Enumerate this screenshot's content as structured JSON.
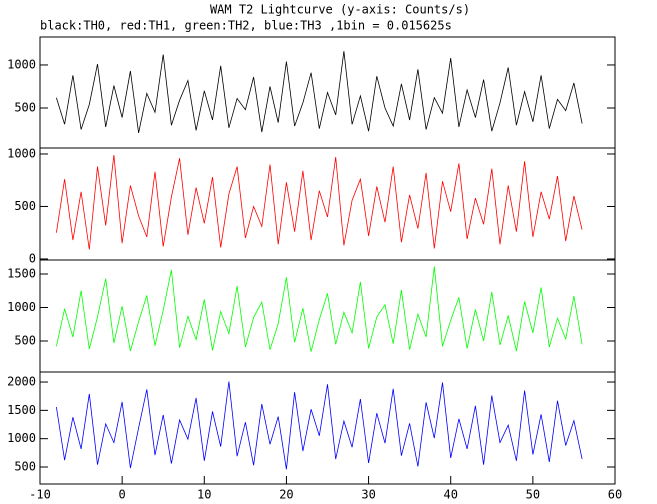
{
  "title": "WAM T2 Lightcurve (y-axis: Counts/s)",
  "subtitle": "black:TH0, red:TH1, green:TH2, blue:TH3 ,1bin = 0.015625s",
  "chart_data": [
    {
      "type": "line",
      "color": "#000000",
      "x": [
        -8,
        -7,
        -6,
        -5,
        -4,
        -3,
        -2,
        -1,
        0,
        1,
        2,
        3,
        4,
        5,
        6,
        7,
        8,
        9,
        10,
        11,
        12,
        13,
        14,
        15,
        16,
        17,
        18,
        19,
        20,
        21,
        22,
        23,
        24,
        25,
        26,
        27,
        28,
        29,
        30,
        31,
        32,
        33,
        34,
        35,
        36,
        37,
        38,
        39,
        40,
        41,
        42,
        43,
        44,
        45,
        46,
        47,
        48,
        49,
        50,
        51,
        52,
        53,
        54,
        55,
        56
      ],
      "values": [
        620,
        310,
        880,
        250,
        540,
        1010,
        280,
        760,
        390,
        930,
        210,
        670,
        450,
        1120,
        300,
        590,
        820,
        240,
        700,
        360,
        990,
        270,
        610,
        480,
        860,
        220,
        750,
        330,
        1040,
        290,
        560,
        910,
        260,
        680,
        420,
        1160,
        310,
        640,
        230,
        870,
        500,
        290,
        780,
        360,
        950,
        250,
        620,
        440,
        1080,
        280,
        710,
        390,
        830,
        230,
        560,
        970,
        300,
        690,
        340,
        880,
        260,
        600,
        470,
        790,
        320
      ],
      "xlim": [
        -10,
        60
      ],
      "ylim": [
        35,
        1325
      ],
      "yticks": [
        500,
        1000
      ]
    },
    {
      "type": "line",
      "color": "#ff0000",
      "x": [
        -8,
        -7,
        -6,
        -5,
        -4,
        -3,
        -2,
        -1,
        0,
        1,
        2,
        3,
        4,
        5,
        6,
        7,
        8,
        9,
        10,
        11,
        12,
        13,
        14,
        15,
        16,
        17,
        18,
        19,
        20,
        21,
        22,
        23,
        24,
        25,
        26,
        27,
        28,
        29,
        30,
        31,
        32,
        33,
        34,
        35,
        36,
        37,
        38,
        39,
        40,
        41,
        42,
        43,
        44,
        45,
        46,
        47,
        48,
        49,
        50,
        51,
        52,
        53,
        54,
        55,
        56
      ],
      "values": [
        250,
        760,
        180,
        640,
        90,
        880,
        320,
        990,
        150,
        700,
        410,
        210,
        830,
        120,
        590,
        960,
        230,
        680,
        340,
        780,
        110,
        620,
        880,
        200,
        500,
        310,
        900,
        140,
        730,
        260,
        840,
        180,
        650,
        400,
        970,
        130,
        560,
        760,
        220,
        690,
        350,
        880,
        160,
        610,
        290,
        820,
        100,
        740,
        450,
        910,
        190,
        580,
        330,
        860,
        140,
        700,
        260,
        930,
        210,
        640,
        380,
        790,
        170,
        600,
        280
      ],
      "xlim": [
        -10,
        60
      ],
      "ylim": [
        -10,
        1057
      ],
      "yticks": [
        0,
        500,
        1000
      ]
    },
    {
      "type": "line",
      "color": "#00ff00",
      "x": [
        -8,
        -7,
        -6,
        -5,
        -4,
        -3,
        -2,
        -1,
        0,
        1,
        2,
        3,
        4,
        5,
        6,
        7,
        8,
        9,
        10,
        11,
        12,
        13,
        14,
        15,
        16,
        17,
        18,
        19,
        20,
        21,
        22,
        23,
        24,
        25,
        26,
        27,
        28,
        29,
        30,
        31,
        32,
        33,
        34,
        35,
        36,
        37,
        38,
        39,
        40,
        41,
        42,
        43,
        44,
        45,
        46,
        47,
        48,
        49,
        50,
        51,
        52,
        53,
        54,
        55,
        56
      ],
      "values": [
        420,
        980,
        560,
        1250,
        380,
        860,
        1430,
        470,
        1020,
        350,
        790,
        1180,
        430,
        960,
        1560,
        400,
        870,
        520,
        1120,
        360,
        940,
        610,
        1320,
        410,
        850,
        1080,
        370,
        760,
        1450,
        480,
        990,
        340,
        820,
        1210,
        450,
        930,
        620,
        1380,
        390,
        860,
        1040,
        460,
        1260,
        370,
        900,
        560,
        1610,
        420,
        810,
        1150,
        390,
        970,
        500,
        1230,
        440,
        880,
        350,
        1090,
        620,
        1300,
        410,
        840,
        530,
        1170,
        450
      ],
      "xlim": [
        -10,
        60
      ],
      "ylim": [
        37,
        1709
      ],
      "yticks": [
        500,
        1000,
        1500
      ]
    },
    {
      "type": "line",
      "color": "#0000ff",
      "x": [
        -8,
        -7,
        -6,
        -5,
        -4,
        -3,
        -2,
        -1,
        0,
        1,
        2,
        3,
        4,
        5,
        6,
        7,
        8,
        9,
        10,
        11,
        12,
        13,
        14,
        15,
        16,
        17,
        18,
        19,
        20,
        21,
        22,
        23,
        24,
        25,
        26,
        27,
        28,
        29,
        30,
        31,
        32,
        33,
        34,
        35,
        36,
        37,
        38,
        39,
        40,
        41,
        42,
        43,
        44,
        45,
        46,
        47,
        48,
        49,
        50,
        51,
        52,
        53,
        54,
        55,
        56
      ],
      "values": [
        1560,
        620,
        1380,
        820,
        1790,
        540,
        1260,
        930,
        1650,
        480,
        1190,
        1870,
        710,
        1420,
        560,
        1330,
        990,
        1720,
        610,
        1480,
        860,
        2010,
        690,
        1290,
        530,
        1610,
        900,
        1390,
        460,
        1820,
        780,
        1520,
        1050,
        1960,
        640,
        1310,
        850,
        1700,
        570,
        1450,
        920,
        1880,
        700,
        1270,
        510,
        1640,
        1010,
        1990,
        660,
        1350,
        820,
        1580,
        540,
        1760,
        930,
        1240,
        610,
        1850,
        720,
        1430,
        590,
        1670,
        880,
        1320,
        640
      ],
      "xlim": [
        -10,
        60
      ],
      "ylim": [
        200,
        2177
      ],
      "yticks": [
        500,
        1000,
        1500,
        2000
      ],
      "xticks": [
        -10,
        0,
        10,
        20,
        30,
        40,
        50,
        60
      ]
    }
  ]
}
